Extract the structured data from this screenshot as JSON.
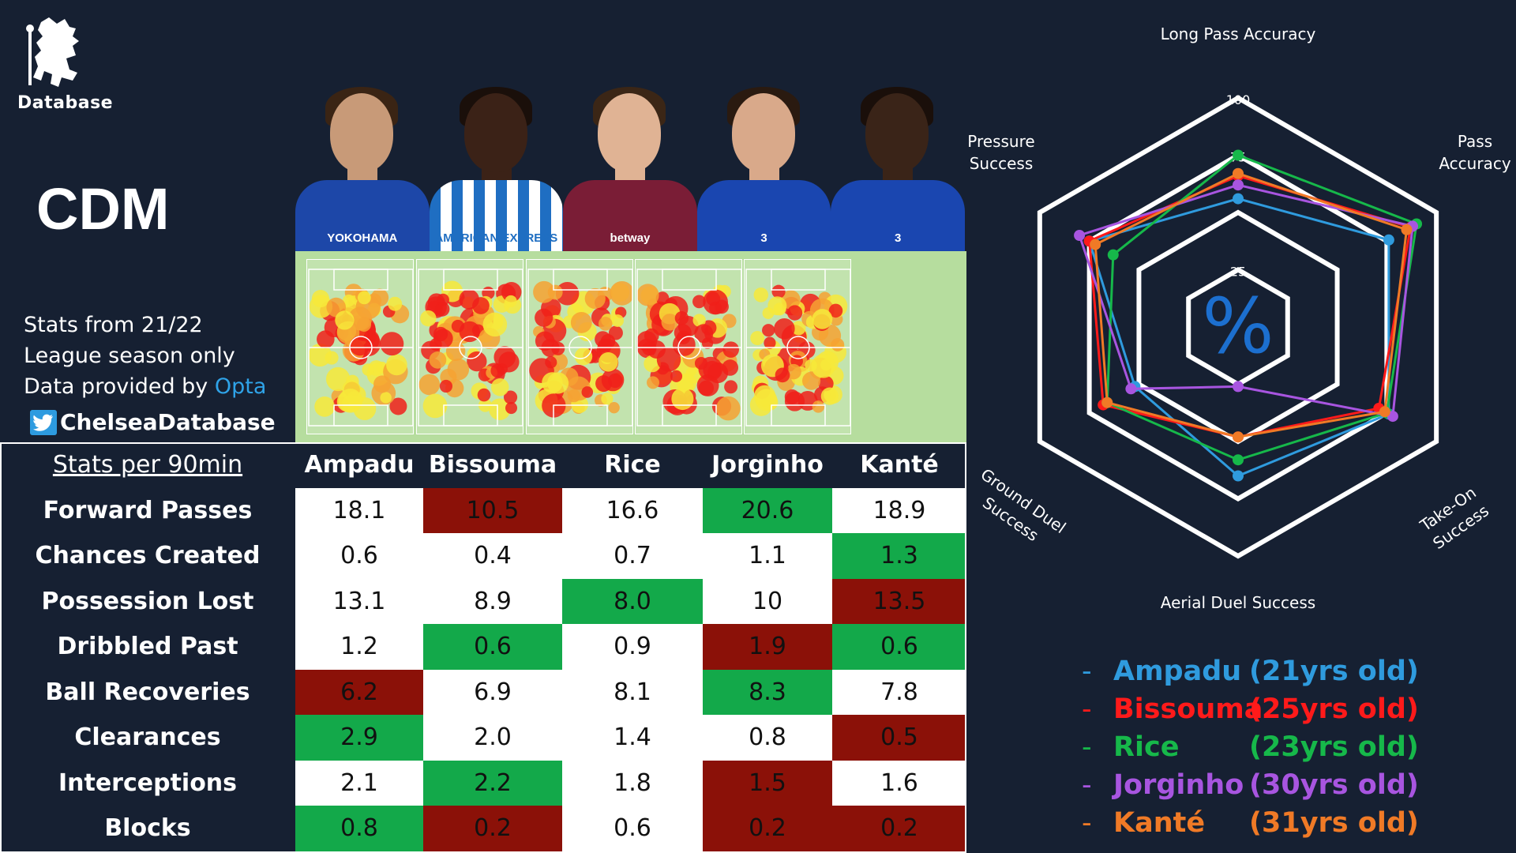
{
  "branding": {
    "logo_text": "Database"
  },
  "position": "CDM",
  "info": {
    "line1": "Stats from 21/22",
    "line2": "League season only",
    "line3_prefix": "Data provided by ",
    "line3_source": "Opta",
    "twitter_handle": "ChelseaDatabase"
  },
  "players": [
    {
      "name": "Ampadu",
      "age": "(21yrs old)",
      "color": "#2f9bde",
      "kit": "#1d47a8",
      "sponsor": "YOKOHAMA",
      "skin": "#c89a78",
      "hair": "#3a2414"
    },
    {
      "name": "Bissouma",
      "age": "(25yrs old)",
      "color": "#ff1a1a",
      "kit": "#1f6ec2",
      "sponsor": "AMERICAN EXPRESS",
      "skin": "#3b2217",
      "hair": "#1a0f0a"
    },
    {
      "name": "Rice",
      "age": "(23yrs old)",
      "color": "#16b84a",
      "kit": "#7a1d36",
      "sponsor": "betway",
      "skin": "#e0b394",
      "hair": "#3b2616"
    },
    {
      "name": "Jorginho",
      "age": "(30yrs old)",
      "color": "#a855e0",
      "kit": "#1a46b0",
      "sponsor": "3",
      "skin": "#d9a98a",
      "hair": "#2a1a10"
    },
    {
      "name": "Kanté",
      "age": "(31yrs old)",
      "color": "#f07a26",
      "kit": "#1a46b0",
      "sponsor": "3",
      "skin": "#3a2418",
      "hair": "#1a0f0a"
    }
  ],
  "table": {
    "header": "Stats per 90min",
    "rows": [
      {
        "label": "Forward Passes",
        "values": [
          "18.1",
          "10.5",
          "16.6",
          "20.6",
          "18.9"
        ],
        "status": [
          "n",
          "b",
          "n",
          "g",
          "n"
        ]
      },
      {
        "label": "Chances Created",
        "values": [
          "0.6",
          "0.4",
          "0.7",
          "1.1",
          "1.3"
        ],
        "status": [
          "n",
          "n",
          "n",
          "n",
          "g"
        ]
      },
      {
        "label": "Possession Lost",
        "values": [
          "13.1",
          "8.9",
          "8.0",
          "10",
          "13.5"
        ],
        "status": [
          "n",
          "n",
          "g",
          "n",
          "b"
        ]
      },
      {
        "label": "Dribbled Past",
        "values": [
          "1.2",
          "0.6",
          "0.9",
          "1.9",
          "0.6"
        ],
        "status": [
          "n",
          "g",
          "n",
          "b",
          "g"
        ]
      },
      {
        "label": "Ball Recoveries",
        "values": [
          "6.2",
          "6.9",
          "8.1",
          "8.3",
          "7.8"
        ],
        "status": [
          "b",
          "n",
          "n",
          "g",
          "n"
        ]
      },
      {
        "label": "Clearances",
        "values": [
          "2.9",
          "2.0",
          "1.4",
          "0.8",
          "0.5"
        ],
        "status": [
          "g",
          "n",
          "n",
          "n",
          "b"
        ]
      },
      {
        "label": "Interceptions",
        "values": [
          "2.1",
          "2.2",
          "1.8",
          "1.5",
          "1.6"
        ],
        "status": [
          "n",
          "g",
          "n",
          "b",
          "n"
        ]
      },
      {
        "label": "Blocks",
        "values": [
          "0.8",
          "0.2",
          "0.6",
          "0.2",
          "0.2"
        ],
        "status": [
          "g",
          "b",
          "n",
          "b",
          "b"
        ]
      }
    ]
  },
  "chart_data": {
    "type": "radar",
    "axes": [
      "Long Pass Accuracy",
      "Pass Accuracy",
      "Take-On Success",
      "Aerial Duel Success",
      "Ground Duel Success",
      "Pressure Success"
    ],
    "axis_labels_display": [
      [
        "Long Pass Accuracy"
      ],
      [
        "Pass",
        "Accuracy"
      ],
      [
        "Take-On",
        "Success"
      ],
      [
        "Aerial Duel Success"
      ],
      [
        "Ground Duel",
        "Success"
      ],
      [
        "Pressure",
        "Success"
      ]
    ],
    "range": [
      0,
      100
    ],
    "ticks": [
      "25",
      "75",
      "100"
    ],
    "center_symbol": "%",
    "series": [
      {
        "name": "Ampadu",
        "values": [
          56,
          76,
          76,
          65,
          52,
          75
        ]
      },
      {
        "name": "Bissouma",
        "values": [
          66,
          87,
          71,
          48,
          68,
          75
        ]
      },
      {
        "name": "Rice",
        "values": [
          75,
          90,
          75,
          58,
          66,
          63
        ]
      },
      {
        "name": "Jorginho",
        "values": [
          62,
          88,
          78,
          26,
          54,
          80
        ]
      },
      {
        "name": "Kanté",
        "values": [
          67,
          85,
          74,
          48,
          66,
          72
        ]
      }
    ]
  }
}
